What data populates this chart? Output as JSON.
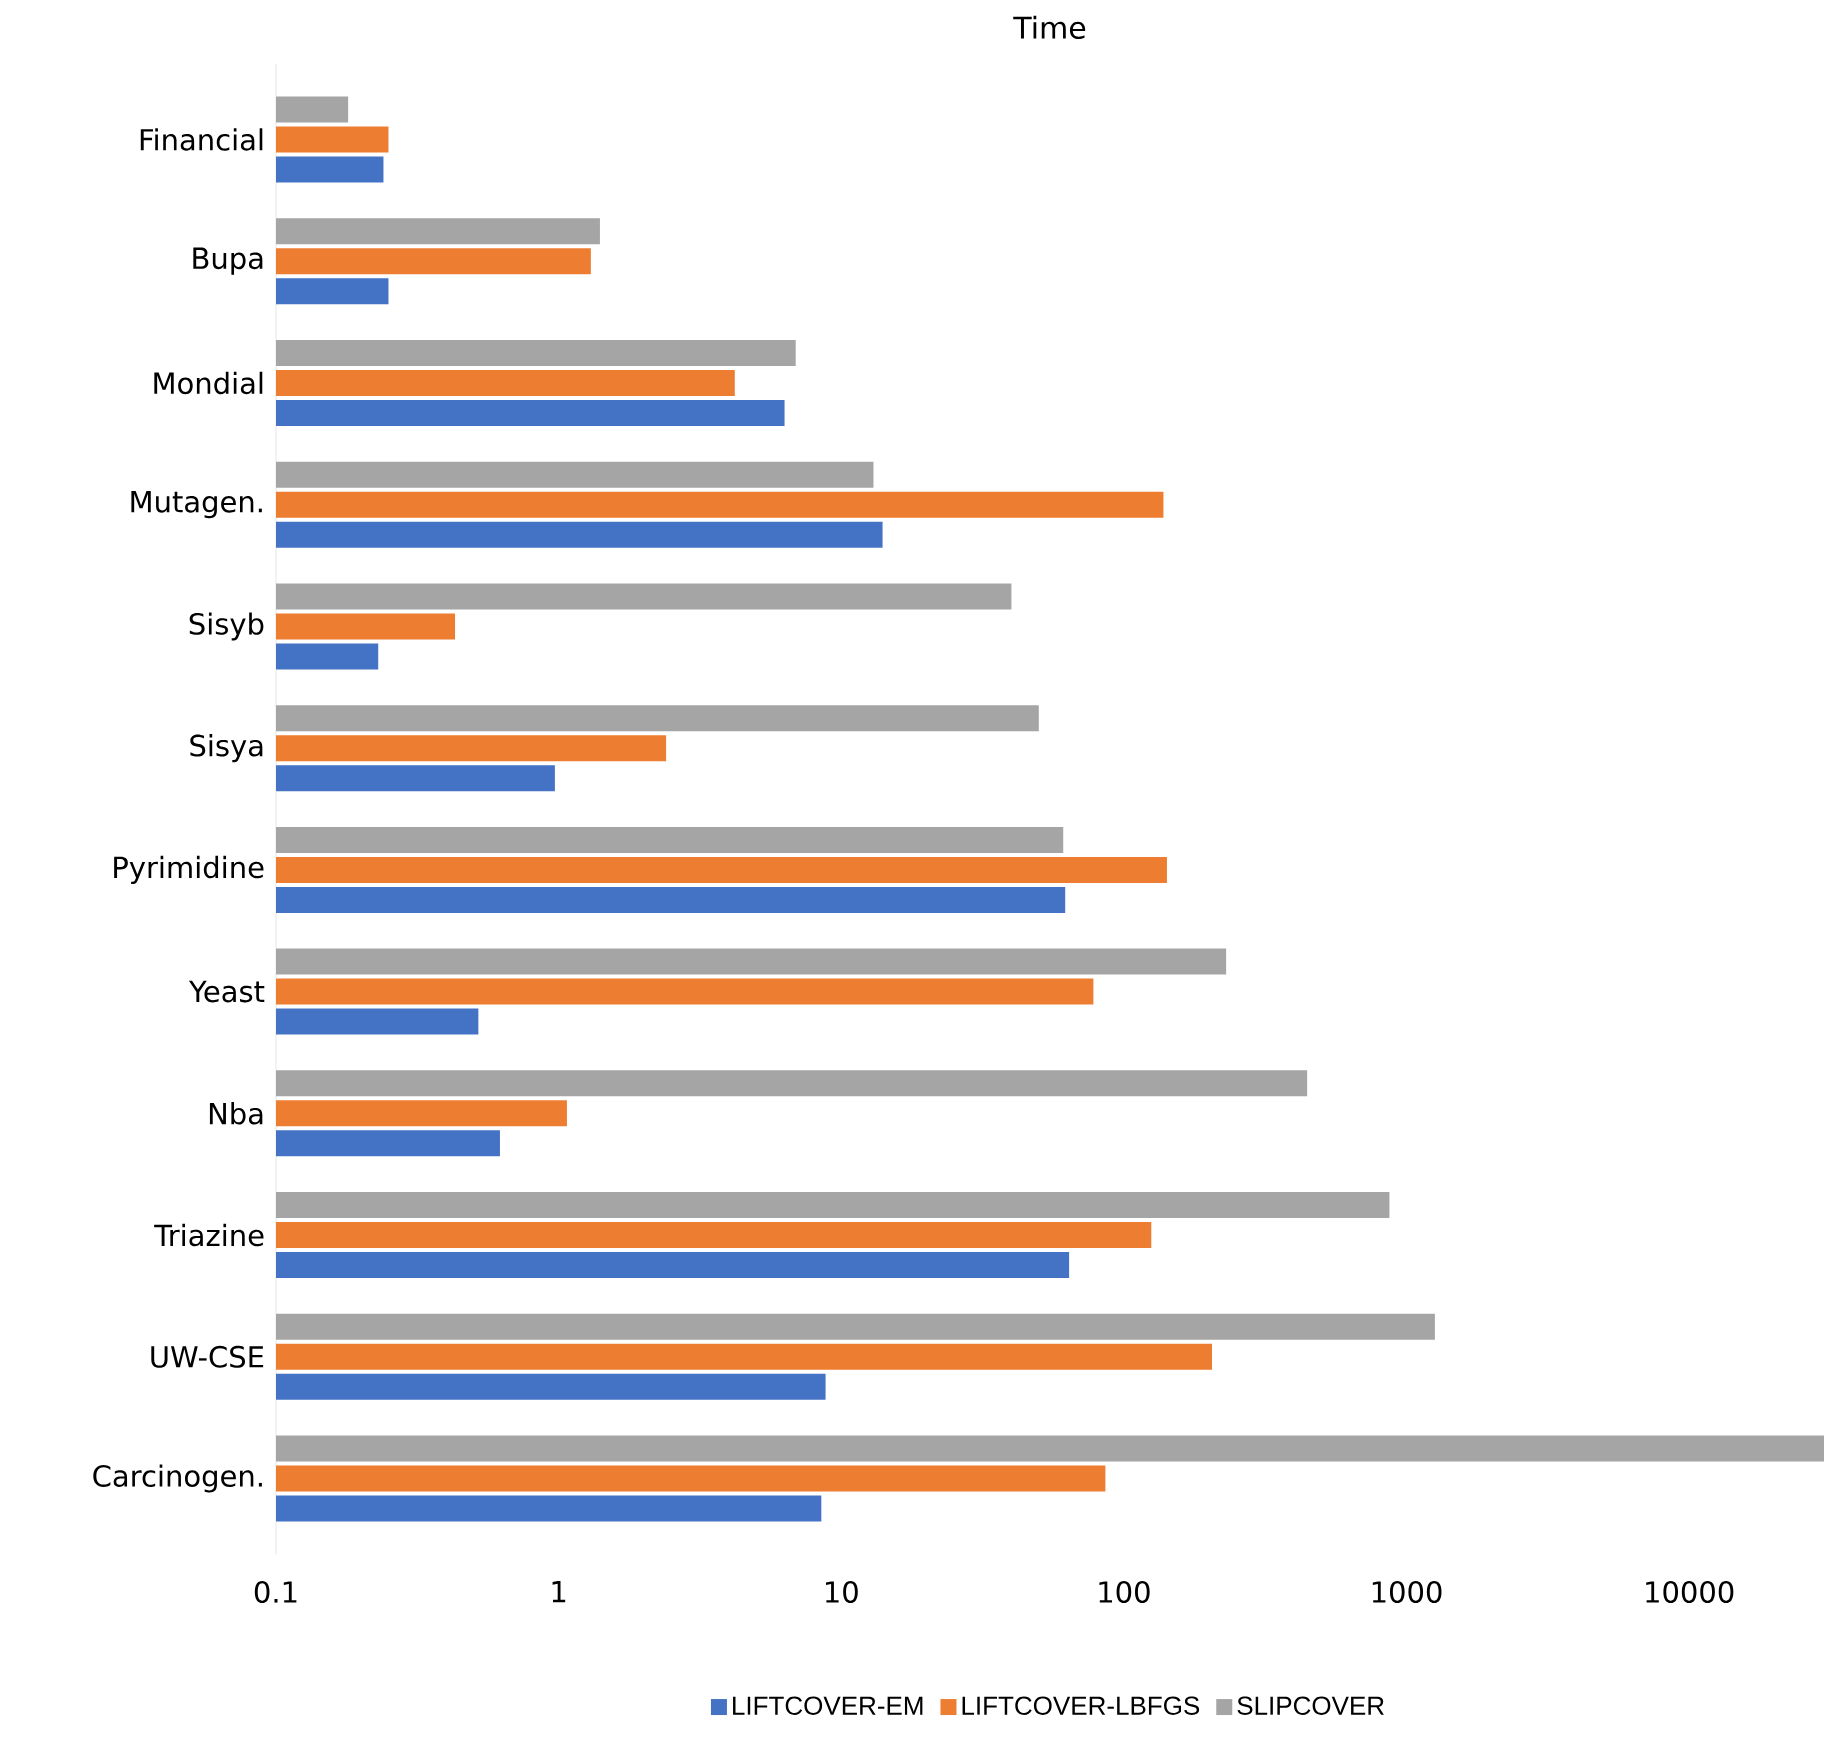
{
  "chart_data": {
    "type": "bar",
    "orientation": "horizontal",
    "title": "Time",
    "log": "x",
    "legend": "bottom",
    "categories": [
      "Financial",
      "Bupa",
      "Mondial",
      "Mutagen.",
      "Sisyb",
      "Sisya",
      "Pyrimidine",
      "Yeast",
      "Nba",
      "Triazine",
      "UW-CSE",
      "Carcinogen."
    ],
    "series": [
      {
        "name": "LIFTCOVER-EM",
        "color": "#4472c4",
        "values": [
          0.24,
          0.25,
          6.3,
          14,
          0.23,
          0.97,
          62,
          0.52,
          0.62,
          64,
          8.8,
          8.5
        ]
      },
      {
        "name": "LIFTCOVER-LBFGS",
        "color": "#ed7d31",
        "values": [
          0.25,
          1.3,
          4.2,
          138,
          0.43,
          2.4,
          142,
          78,
          1.07,
          125,
          205,
          86
        ]
      },
      {
        "name": "SLIPCOVER",
        "color": "#a5a5a5",
        "values": [
          0.18,
          1.4,
          6.9,
          13,
          40,
          50,
          61,
          230,
          445,
          870,
          1260,
          30000
        ]
      }
    ],
    "xlim": [
      0.1,
      30000
    ],
    "xticks": [
      0.1,
      1,
      10,
      100,
      1000,
      10000
    ]
  }
}
